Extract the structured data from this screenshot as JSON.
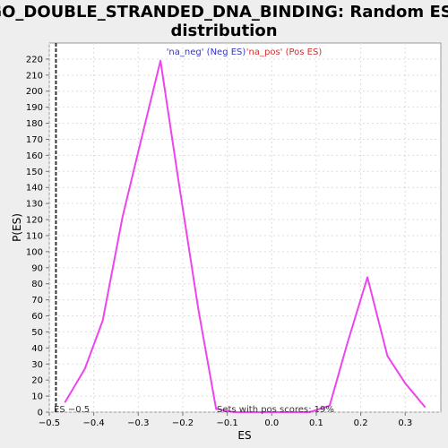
{
  "chart_data": {
    "type": "line",
    "title_line1": "GO_DOUBLE_STRANDED_DNA_BINDING: Random ES",
    "title_line2": "distribution",
    "xlabel": "ES",
    "ylabel": "P(ES)",
    "xlim": [
      -0.5,
      0.38
    ],
    "ylim": [
      0,
      230
    ],
    "x_ticks": [
      -0.5,
      -0.4,
      -0.3,
      -0.2,
      -0.1,
      0.0,
      0.1,
      0.2,
      0.3
    ],
    "x_tick_labels": [
      "−0.5",
      "−0.4",
      "−0.3",
      "−0.2",
      "−0.1",
      "0.0",
      "0.1",
      "0.2",
      "0.3"
    ],
    "y_ticks": [
      0,
      10,
      20,
      30,
      40,
      50,
      60,
      70,
      80,
      90,
      100,
      110,
      120,
      130,
      140,
      150,
      160,
      170,
      180,
      190,
      200,
      210,
      220
    ],
    "grid": true,
    "legend_placement": "top-center",
    "legend": [
      {
        "label": "'na_neg' (Neg ES)",
        "color": "#3333cc"
      },
      {
        "label": "'na_pos' (Pos ES)",
        "color": "#cc3333"
      }
    ],
    "line_color": "#ee44ee",
    "series": [
      {
        "values_x": [
          -0.465,
          -0.42,
          -0.38,
          -0.335,
          -0.295,
          -0.25,
          -0.21,
          -0.165,
          -0.125,
          -0.085,
          -0.04,
          0.0,
          0.04,
          0.085,
          0.13,
          0.17,
          0.215,
          0.26,
          0.3,
          0.345
        ],
        "values_y": [
          6,
          27,
          57,
          122,
          168,
          219,
          145,
          64,
          2,
          0,
          0,
          0,
          0,
          0,
          4,
          43,
          84,
          35,
          18,
          3
        ]
      }
    ],
    "es_marker": {
      "x": -0.485,
      "label": "ES −0.5"
    },
    "annotation": "Sets with pos scores: 19%"
  }
}
